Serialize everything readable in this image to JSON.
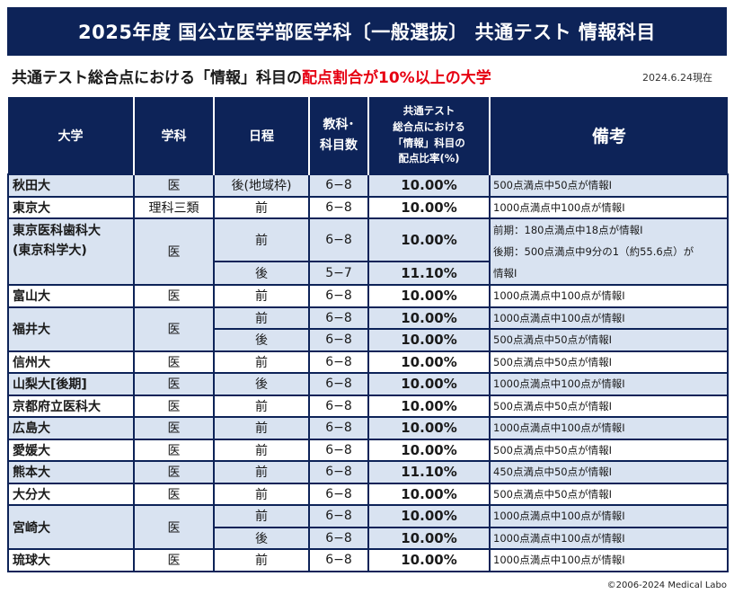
{
  "title": "2025年度 国公立医学部医学科〔一般選抜〕 共通テスト 情報科目",
  "subtitle": {
    "prefix": "共通テスト総合点における「情報」科目の",
    "highlight": "配点割合が10%以上の大学"
  },
  "date": "2024.6.24現在",
  "headers": {
    "university": "大学",
    "department": "学科",
    "schedule": "日程",
    "subjects": [
      "教科･",
      "科目数"
    ],
    "rate": [
      "共通テスト",
      "総合点における",
      "「情報」科目の",
      "配点比率(%)"
    ],
    "notes": "備考"
  },
  "rows": [
    {
      "university": "秋田大",
      "department": "医",
      "schedule": "後(地域枠)",
      "subjects": "6−8",
      "rate": "10.00%",
      "note": "500点満点中50点が情報Ⅰ"
    },
    {
      "university": "東京大",
      "department": "理科三類",
      "schedule": "前",
      "subjects": "6−8",
      "rate": "10.00%",
      "note": "1000点満点中100点が情報Ⅰ"
    },
    {
      "university": "東京医科歯科大",
      "university_sub": "(東京科学大)",
      "department": "医",
      "schedule": "前",
      "subjects": "6−8",
      "rate": "10.00%",
      "note_lines": [
        "前期：180点満点中18点が情報Ⅰ",
        "後期：500点満点中9分の1（約55.6点）が",
        "情報Ⅰ"
      ]
    },
    {
      "schedule": "後",
      "subjects": "5−7",
      "rate": "11.10%"
    },
    {
      "university": "富山大",
      "department": "医",
      "schedule": "前",
      "subjects": "6−8",
      "rate": "10.00%",
      "note": "1000点満点中100点が情報Ⅰ"
    },
    {
      "university": "福井大",
      "department": "医",
      "schedule": "前",
      "subjects": "6−8",
      "rate": "10.00%",
      "note": "1000点満点中100点が情報Ⅰ"
    },
    {
      "schedule": "後",
      "subjects": "6−8",
      "rate": "10.00%",
      "note": "500点満点中50点が情報Ⅰ"
    },
    {
      "university": "信州大",
      "department": "医",
      "schedule": "前",
      "subjects": "6−8",
      "rate": "10.00%",
      "note": "500点満点中50点が情報Ⅰ"
    },
    {
      "university": "山梨大[後期]",
      "department": "医",
      "schedule": "後",
      "subjects": "6−8",
      "rate": "10.00%",
      "note": "1000点満点中100点が情報Ⅰ"
    },
    {
      "university": "京都府立医科大",
      "department": "医",
      "schedule": "前",
      "subjects": "6−8",
      "rate": "10.00%",
      "note": "500点満点中50点が情報Ⅰ"
    },
    {
      "university": "広島大",
      "department": "医",
      "schedule": "前",
      "subjects": "6−8",
      "rate": "10.00%",
      "note": "1000点満点中100点が情報Ⅰ"
    },
    {
      "university": "愛媛大",
      "department": "医",
      "schedule": "前",
      "subjects": "6−8",
      "rate": "10.00%",
      "note": "500点満点中50点が情報Ⅰ"
    },
    {
      "university": "熊本大",
      "department": "医",
      "schedule": "前",
      "subjects": "6−8",
      "rate": "11.10%",
      "note": "450点満点中50点が情報Ⅰ"
    },
    {
      "university": "大分大",
      "department": "医",
      "schedule": "前",
      "subjects": "6−8",
      "rate": "10.00%",
      "note": "500点満点中50点が情報Ⅰ"
    },
    {
      "university": "宮崎大",
      "department": "医",
      "schedule": "前",
      "subjects": "6−8",
      "rate": "10.00%",
      "note": "1000点満点中100点が情報Ⅰ"
    },
    {
      "schedule": "後",
      "subjects": "6−8",
      "rate": "10.00%",
      "note": "1000点満点中100点が情報Ⅰ"
    },
    {
      "university": "琉球大",
      "department": "医",
      "schedule": "前",
      "subjects": "6−8",
      "rate": "10.00%",
      "note": "1000点満点中100点が情報Ⅰ"
    }
  ],
  "copyright": "©2006-2024 Medical Labo",
  "colors": {
    "header_bg": "#0d2358",
    "shade": "#d9e3f1",
    "highlight": "#e60012"
  }
}
